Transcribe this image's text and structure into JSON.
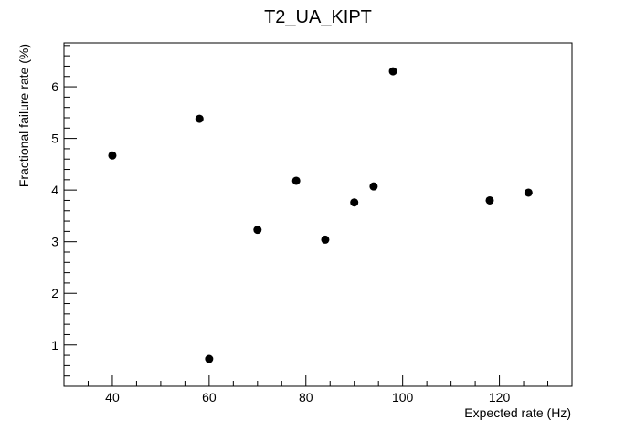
{
  "chart_data": {
    "type": "scatter",
    "title": "T2_UA_KIPT",
    "xlabel": "Expected rate (Hz)",
    "ylabel": "Fractional failure rate (%)",
    "xlim": [
      30,
      135
    ],
    "ylim": [
      0.2,
      6.85
    ],
    "x_ticks": [
      40,
      60,
      80,
      100,
      120
    ],
    "y_ticks": [
      1,
      2,
      3,
      4,
      5,
      6
    ],
    "grid": false,
    "points": [
      {
        "x": 40,
        "y": 4.67
      },
      {
        "x": 58,
        "y": 5.38
      },
      {
        "x": 60,
        "y": 0.73
      },
      {
        "x": 70,
        "y": 3.23
      },
      {
        "x": 78,
        "y": 4.18
      },
      {
        "x": 84,
        "y": 3.04
      },
      {
        "x": 90,
        "y": 3.76
      },
      {
        "x": 94,
        "y": 4.07
      },
      {
        "x": 98,
        "y": 6.3
      },
      {
        "x": 118,
        "y": 3.8
      },
      {
        "x": 126,
        "y": 3.95
      }
    ]
  }
}
